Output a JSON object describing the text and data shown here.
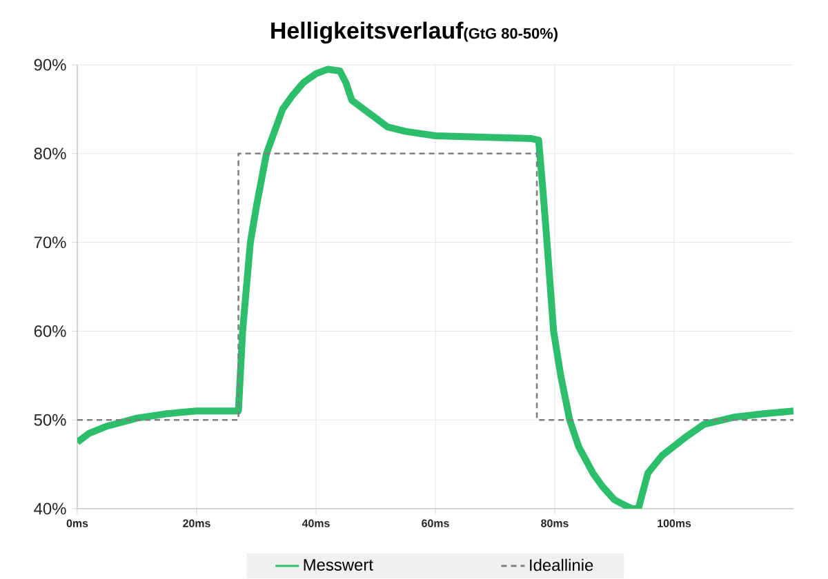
{
  "chart_data": {
    "type": "line",
    "title": "Helligkeitsverlauf",
    "subtitle": "(GtG 80-50%)",
    "xlim": [
      0,
      120
    ],
    "ylim": [
      40,
      90
    ],
    "xticks": [
      {
        "value": 0,
        "label": "0ms"
      },
      {
        "value": 20,
        "label": "20ms"
      },
      {
        "value": 40,
        "label": "40ms"
      },
      {
        "value": 60,
        "label": "60ms"
      },
      {
        "value": 80,
        "label": "80ms"
      },
      {
        "value": 100,
        "label": "100ms"
      }
    ],
    "yticks": [
      {
        "value": 40,
        "label": "40%"
      },
      {
        "value": 50,
        "label": "50%"
      },
      {
        "value": 60,
        "label": "60%"
      },
      {
        "value": 70,
        "label": "70%"
      },
      {
        "value": 80,
        "label": "80%"
      },
      {
        "value": 90,
        "label": "90%"
      }
    ],
    "grid": true,
    "legend": "bottom",
    "marker": "none",
    "series": [
      {
        "name": "Messwert",
        "color": "#2dbe6c",
        "line_style": "solid",
        "x": [
          0,
          2,
          5,
          10,
          15,
          20,
          25,
          27,
          27.7,
          29,
          30,
          31.7,
          34.4,
          36,
          37.9,
          40,
          42,
          44,
          45,
          46,
          48,
          50,
          52,
          55,
          60,
          70,
          76,
          77.3,
          78,
          78.7,
          79.8,
          81,
          82.5,
          84,
          86.4,
          88,
          90,
          92,
          93,
          94,
          95.6,
          98,
          101.8,
          105,
          110,
          115,
          120
        ],
        "values": [
          47.5,
          48.5,
          49.3,
          50.2,
          50.7,
          51,
          51,
          51,
          60,
          70,
          74,
          80,
          85,
          86.5,
          88,
          89,
          89.5,
          89.3,
          88,
          86,
          85,
          84,
          83,
          82.5,
          82,
          81.8,
          81.7,
          81.5,
          76,
          70,
          60,
          55,
          50,
          47,
          44,
          42.5,
          41,
          40.3,
          40,
          40,
          44,
          46,
          48,
          49.5,
          50.3,
          50.7,
          51
        ]
      },
      {
        "name": "Ideallinie",
        "color": "#7f7f7f",
        "line_style": "dashed",
        "x": [
          0,
          27,
          27,
          77,
          77,
          120
        ],
        "values": [
          50,
          50,
          80,
          80,
          50,
          50
        ]
      }
    ]
  }
}
